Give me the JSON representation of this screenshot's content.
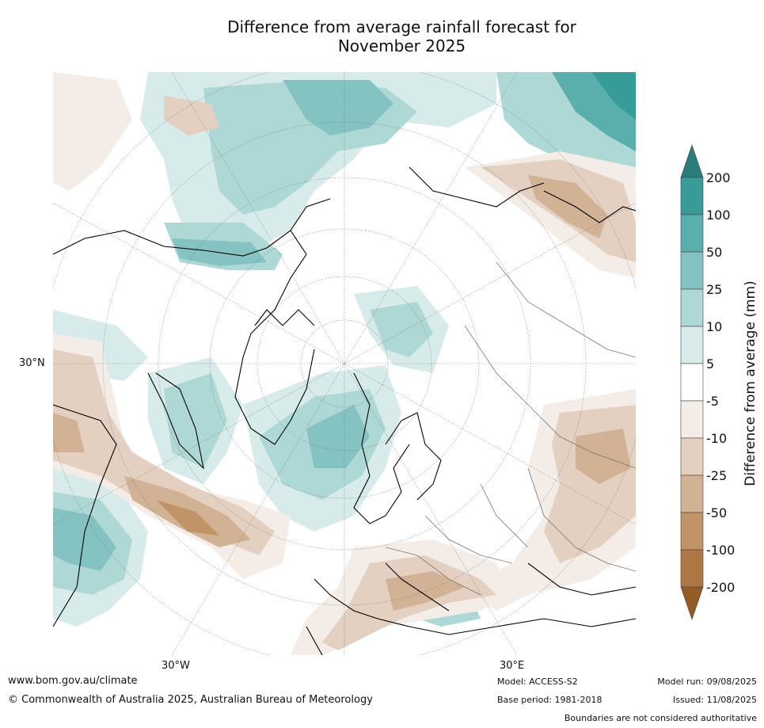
{
  "title_line1": "Difference from average rainfall forecast for",
  "title_line2": "November 2025",
  "axis_labels": {
    "lat_30n": "30°N",
    "lon_30w": "30°W",
    "lon_30e": "30°E"
  },
  "colorbar": {
    "label": "Difference from average (mm)",
    "ticks": [
      "200",
      "100",
      "50",
      "25",
      "10",
      "5",
      "-5",
      "-10",
      "-25",
      "-50",
      "-100",
      "-200"
    ],
    "colors": {
      "gt200": "#2a7d7b",
      "c100_200": "#379b98",
      "c50_100": "#5aaeab",
      "c25_50": "#84c3c1",
      "c10_25": "#aed8d6",
      "c5_10": "#d6ebea",
      "c_neutral": "#ffffff",
      "n5_10": "#f4ece6",
      "n10_25": "#e4d0c0",
      "n25_50": "#d2b294",
      "n50_100": "#c09466",
      "n100_200": "#ad7642",
      "lt200": "#955b25"
    }
  },
  "footer": {
    "url": "www.bom.gov.au/climate",
    "copyright": "© Commonwealth of Australia 2025, Australian Bureau of Meteorology",
    "model": "Model: ACCESS-S2",
    "base_period": "Base period: 1981-2018",
    "model_run": "Model run: 09/08/2025",
    "issued": "Issued: 11/08/2025",
    "disclaimer": "Boundaries are not considered authoritative"
  }
}
